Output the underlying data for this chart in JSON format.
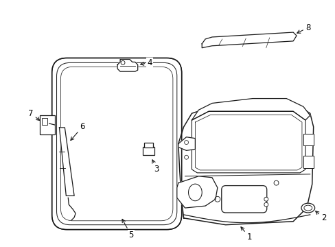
{
  "background_color": "#ffffff",
  "line_color": "#1a1a1a",
  "label_color": "#000000",
  "lw": 0.9
}
